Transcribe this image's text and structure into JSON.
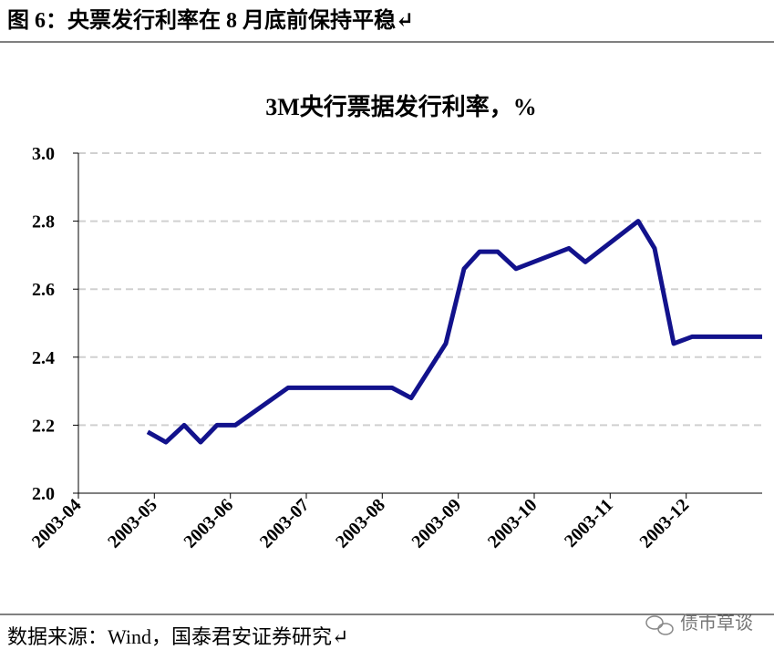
{
  "header": {
    "title": "图 6：央票发行利率在 8 月底前保持平稳↵"
  },
  "chart_data": {
    "type": "line",
    "title": "3M央行票据发行利率，%",
    "x": [
      2003.326,
      2003.346,
      2003.366,
      2003.384,
      2003.402,
      2003.422,
      2003.48,
      2003.594,
      2003.615,
      2003.653,
      2003.673,
      2003.69,
      2003.71,
      2003.73,
      2003.788,
      2003.806,
      2003.864,
      2003.882,
      2003.903,
      2003.923,
      2004.0
    ],
    "series": [
      {
        "name": "3M央行票据发行利率",
        "color": "#12128c",
        "values": [
          2.18,
          2.15,
          2.2,
          2.15,
          2.2,
          2.2,
          2.31,
          2.31,
          2.28,
          2.44,
          2.66,
          2.71,
          2.71,
          2.66,
          2.72,
          2.68,
          2.8,
          2.72,
          2.44,
          2.46,
          2.46
        ]
      }
    ],
    "xlim": [
      2003.25,
      2004.0
    ],
    "xticks": [
      {
        "value": 2003.25,
        "label": "2003-04"
      },
      {
        "value": 2003.3333,
        "label": "2003-05"
      },
      {
        "value": 2003.4167,
        "label": "2003-06"
      },
      {
        "value": 2003.5,
        "label": "2003-07"
      },
      {
        "value": 2003.5833,
        "label": "2003-08"
      },
      {
        "value": 2003.6667,
        "label": "2003-09"
      },
      {
        "value": 2003.75,
        "label": "2003-10"
      },
      {
        "value": 2003.8333,
        "label": "2003-11"
      },
      {
        "value": 2003.9167,
        "label": "2003-12"
      }
    ],
    "ylim": [
      2.0,
      3.0
    ],
    "yticks": [
      {
        "value": 2.0,
        "label": "2.0"
      },
      2.2,
      2.4,
      2.6,
      2.8,
      {
        "value": 3.0,
        "label": "3.0"
      }
    ],
    "grid": true
  },
  "footer": {
    "source": "数据来源：Wind，国泰君安证券研究↵",
    "watermark": "债市草谈"
  }
}
